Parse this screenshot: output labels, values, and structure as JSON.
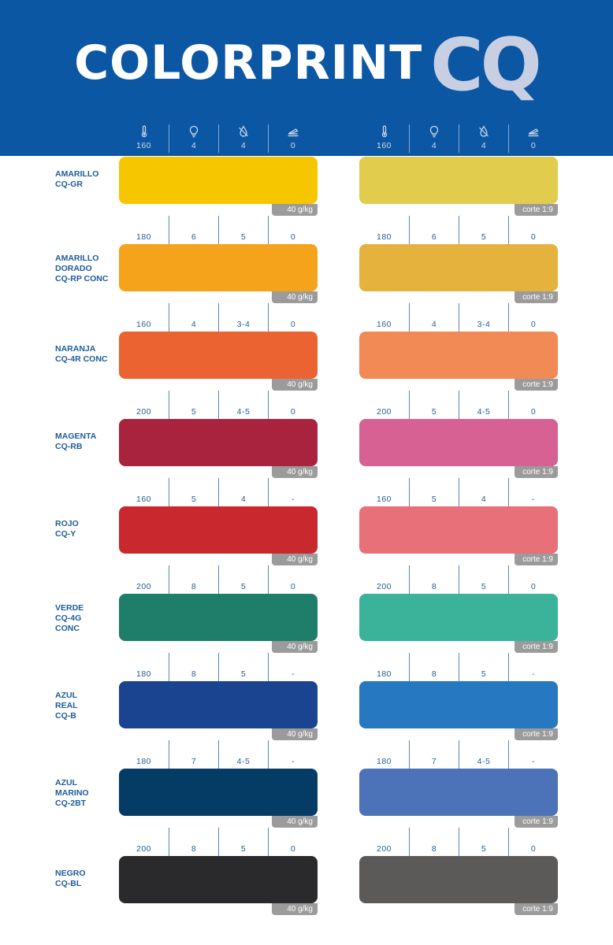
{
  "brand": {
    "main": "COLORPRINT",
    "accent": "CQ"
  },
  "icons": [
    "thermometer-icon",
    "bulb-icon",
    "droplet-icon",
    "stapler-icon"
  ],
  "header_params": {
    "left": [
      "160",
      "4",
      "4",
      "0"
    ],
    "right": [
      "160",
      "4",
      "4",
      "0"
    ]
  },
  "tags": {
    "left": "40 g/kg",
    "right": "corte 1:9"
  },
  "rows": [
    {
      "name": "AMARILLO\nCQ-GR",
      "left_color": "#f6c700",
      "right_color": "#e1cc4e",
      "left_params": null,
      "right_params": null
    },
    {
      "name": "AMARILLO\nDORADO\nCQ-RP CONC",
      "left_color": "#f5a31a",
      "right_color": "#e6b23e",
      "left_params": [
        "180",
        "6",
        "5",
        "0"
      ],
      "right_params": [
        "180",
        "6",
        "5",
        "0"
      ]
    },
    {
      "name": "NARANJA\nCQ-4R CONC",
      "left_color": "#ea6330",
      "right_color": "#f28a55",
      "left_params": [
        "160",
        "4",
        "3-4",
        "0"
      ],
      "right_params": [
        "160",
        "4",
        "3-4",
        "0"
      ]
    },
    {
      "name": "MAGENTA\nCQ-RB",
      "left_color": "#a9223e",
      "right_color": "#d86193",
      "left_params": [
        "200",
        "5",
        "4-5",
        "0"
      ],
      "right_params": [
        "200",
        "5",
        "4-5",
        "0"
      ]
    },
    {
      "name": "ROJO\nCQ-Y",
      "left_color": "#c9282e",
      "right_color": "#e87078",
      "left_params": [
        "160",
        "5",
        "4",
        "-"
      ],
      "right_params": [
        "160",
        "5",
        "4",
        "-"
      ]
    },
    {
      "name": "VERDE\nCQ-4G\nCONC",
      "left_color": "#1f7e69",
      "right_color": "#3bb39b",
      "left_params": [
        "200",
        "8",
        "5",
        "0"
      ],
      "right_params": [
        "200",
        "8",
        "5",
        "0"
      ]
    },
    {
      "name": "AZUL\nREAL\nCQ-B",
      "left_color": "#1a4490",
      "right_color": "#2678c1",
      "left_params": [
        "180",
        "8",
        "5",
        "-"
      ],
      "right_params": [
        "180",
        "8",
        "5",
        "-"
      ]
    },
    {
      "name": "AZUL\nMARINO\nCQ-2BT",
      "left_color": "#053c66",
      "right_color": "#4c73b8",
      "left_params": [
        "180",
        "7",
        "4-5",
        "-"
      ],
      "right_params": [
        "180",
        "7",
        "4-5",
        "-"
      ]
    },
    {
      "name": "NEGRO\nCQ-BL",
      "left_color": "#2a2a2c",
      "right_color": "#5b5a59",
      "left_params": [
        "200",
        "8",
        "5",
        "0"
      ],
      "right_params": [
        "200",
        "8",
        "5",
        "0"
      ]
    }
  ]
}
